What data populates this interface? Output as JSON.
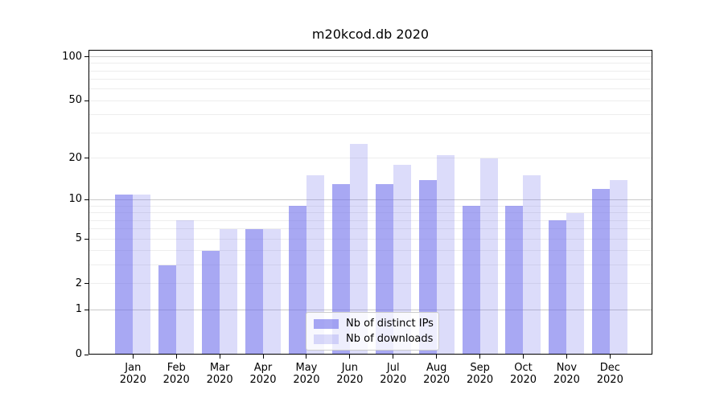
{
  "window": {
    "background": "#ffffff"
  },
  "chart_data": {
    "type": "bar",
    "title": "m20kcod.db 2020",
    "categories": [
      "Jan",
      "Feb",
      "Mar",
      "Apr",
      "May",
      "Jun",
      "Jul",
      "Aug",
      "Sep",
      "Oct",
      "Nov",
      "Dec"
    ],
    "category_year": "2020",
    "series": [
      {
        "name": "Nb of distinct IPs",
        "color": "rgba(110,110,235,0.6)",
        "values": [
          11,
          3,
          4,
          6,
          9,
          13,
          13,
          14,
          9,
          9,
          7,
          12
        ]
      },
      {
        "name": "Nb of downloads",
        "color": "rgba(110,110,235,0.24)",
        "values": [
          11,
          7,
          6,
          6,
          15,
          25,
          18,
          21,
          20,
          15,
          8,
          14
        ]
      }
    ],
    "yscale": "log1p",
    "ylim": [
      0,
      100
    ],
    "ytick_labels": [
      100,
      50,
      20,
      10,
      5,
      2,
      1,
      0
    ],
    "grid_major_values": [
      1,
      10,
      100
    ],
    "grid_minor_values": [
      2,
      3,
      4,
      5,
      6,
      7,
      8,
      9,
      20,
      30,
      40,
      50,
      60,
      70,
      80,
      90
    ],
    "legend_position": "lower center",
    "grid": "on"
  },
  "colors": {
    "axis": "#000000",
    "grid_major": "#c9c9c9",
    "grid_minor": "#ededed",
    "text": "#000000",
    "legend_border": "#cccccc",
    "legend_background": "rgba(255,255,255,0.8)"
  }
}
